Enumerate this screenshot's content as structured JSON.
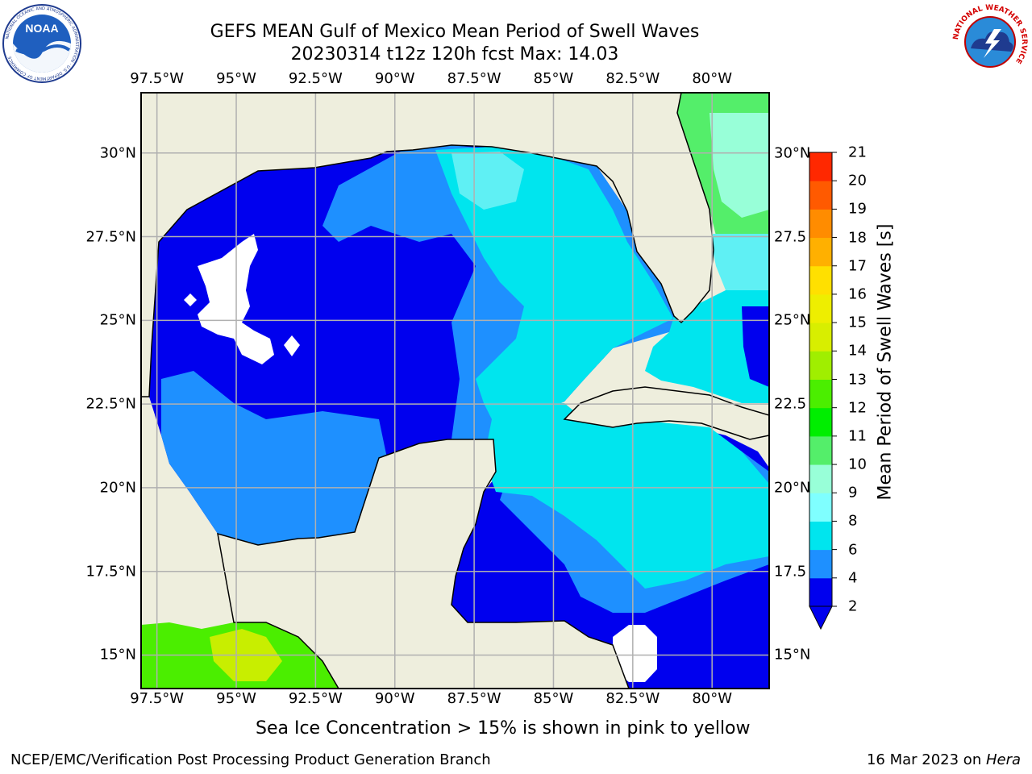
{
  "header": {
    "title": "GEFS MEAN Gulf of Mexico Mean Period of Swell Waves",
    "subtitle": "20230314 t12z 120h fcst   Max: 14.03"
  },
  "logos": {
    "noaa_text": "NOAA",
    "noaa_ring_text": "NATIONAL OCEANIC AND ATMOSPHERIC ADMINISTRATION · U.S. DEPARTMENT OF COMMERCE",
    "nws_ring_text": "NATIONAL WEATHER SERVICE"
  },
  "map": {
    "lon_range": [
      -98.0,
      -78.2
    ],
    "lat_range": [
      14.0,
      31.8
    ],
    "lon_ticks": [
      {
        "value": -97.5,
        "label": "97.5°W"
      },
      {
        "value": -95.0,
        "label": "95°W"
      },
      {
        "value": -92.5,
        "label": "92.5°W"
      },
      {
        "value": -90.0,
        "label": "90°W"
      },
      {
        "value": -87.5,
        "label": "87.5°W"
      },
      {
        "value": -85.0,
        "label": "85°W"
      },
      {
        "value": -82.5,
        "label": "82.5°W"
      },
      {
        "value": -80.0,
        "label": "80°W"
      }
    ],
    "lat_ticks_left": [
      {
        "value": 30.0,
        "label": "30°N"
      },
      {
        "value": 27.5,
        "label": "27.5°N"
      },
      {
        "value": 25.0,
        "label": "25°N"
      },
      {
        "value": 22.5,
        "label": "22.5°N"
      },
      {
        "value": 20.0,
        "label": "20°N"
      },
      {
        "value": 17.5,
        "label": "17.5°N"
      },
      {
        "value": 15.0,
        "label": "15°N"
      }
    ],
    "lat_ticks_right": [
      {
        "value": 30.0,
        "label": "30°N"
      },
      {
        "value": 27.5,
        "label": "27.5"
      },
      {
        "value": 25.0,
        "label": "25°N"
      },
      {
        "value": 22.5,
        "label": "22.5"
      },
      {
        "value": 20.0,
        "label": "20°N"
      },
      {
        "value": 17.5,
        "label": "17.5"
      },
      {
        "value": 15.0,
        "label": "15°N"
      }
    ],
    "colors": {
      "land": "#eeeedd",
      "coast": "#000000",
      "grid": "#b0b0b0",
      "no_data": "#ffffff"
    }
  },
  "colorbar": {
    "label": "Mean Period of Swell Waves [s]",
    "ticks": [
      2,
      4,
      6,
      8,
      9,
      10,
      11,
      12,
      13,
      14,
      15,
      16,
      17,
      18,
      19,
      20,
      21
    ],
    "colors": [
      "#0000ee",
      "#1e90ff",
      "#00e5ee",
      "#7fffff",
      "#98ffd8",
      "#54ee6a",
      "#00ee00",
      "#4bee00",
      "#a0ee00",
      "#d8ee00",
      "#eeee00",
      "#ffe000",
      "#ffb000",
      "#ff8c00",
      "#ff5a00",
      "#ff2800"
    ],
    "extend_color": "#0000ee"
  },
  "footer": {
    "note": "Sea Ice Concentration > 15% is shown in pink to yellow",
    "left": "NCEP/EMC/Verification Post Processing Product Generation Branch",
    "right_prefix": "16 Mar 2023 on ",
    "right_machine": "Hera"
  }
}
